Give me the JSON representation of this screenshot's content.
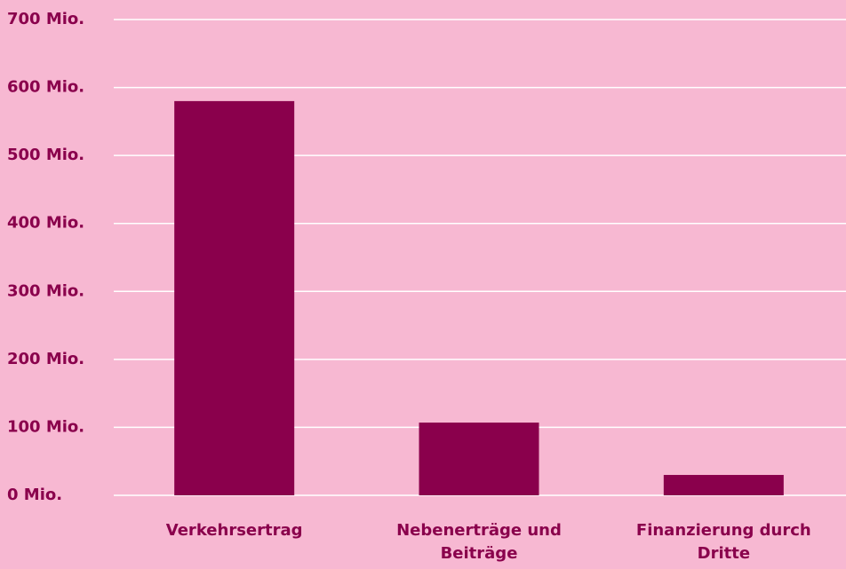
{
  "chart_data": {
    "type": "bar",
    "categories": [
      "Verkehrsertrag",
      "Nebenerträge und Beiträge",
      "Finanzierung durch Dritte"
    ],
    "values": [
      580,
      107,
      30
    ],
    "color": "#8a004c",
    "ylim": [
      0,
      700
    ],
    "yticks": [
      {
        "value": 0,
        "label": "0 Mio."
      },
      {
        "value": 100,
        "label": "100 Mio."
      },
      {
        "value": 200,
        "label": "200 Mio."
      },
      {
        "value": 300,
        "label": "300 Mio."
      },
      {
        "value": 400,
        "label": "400 Mio."
      },
      {
        "value": 500,
        "label": "500 Mio."
      },
      {
        "value": 600,
        "label": "600 Mio."
      },
      {
        "value": 700,
        "label": "700 Mio."
      }
    ],
    "grid": true
  }
}
